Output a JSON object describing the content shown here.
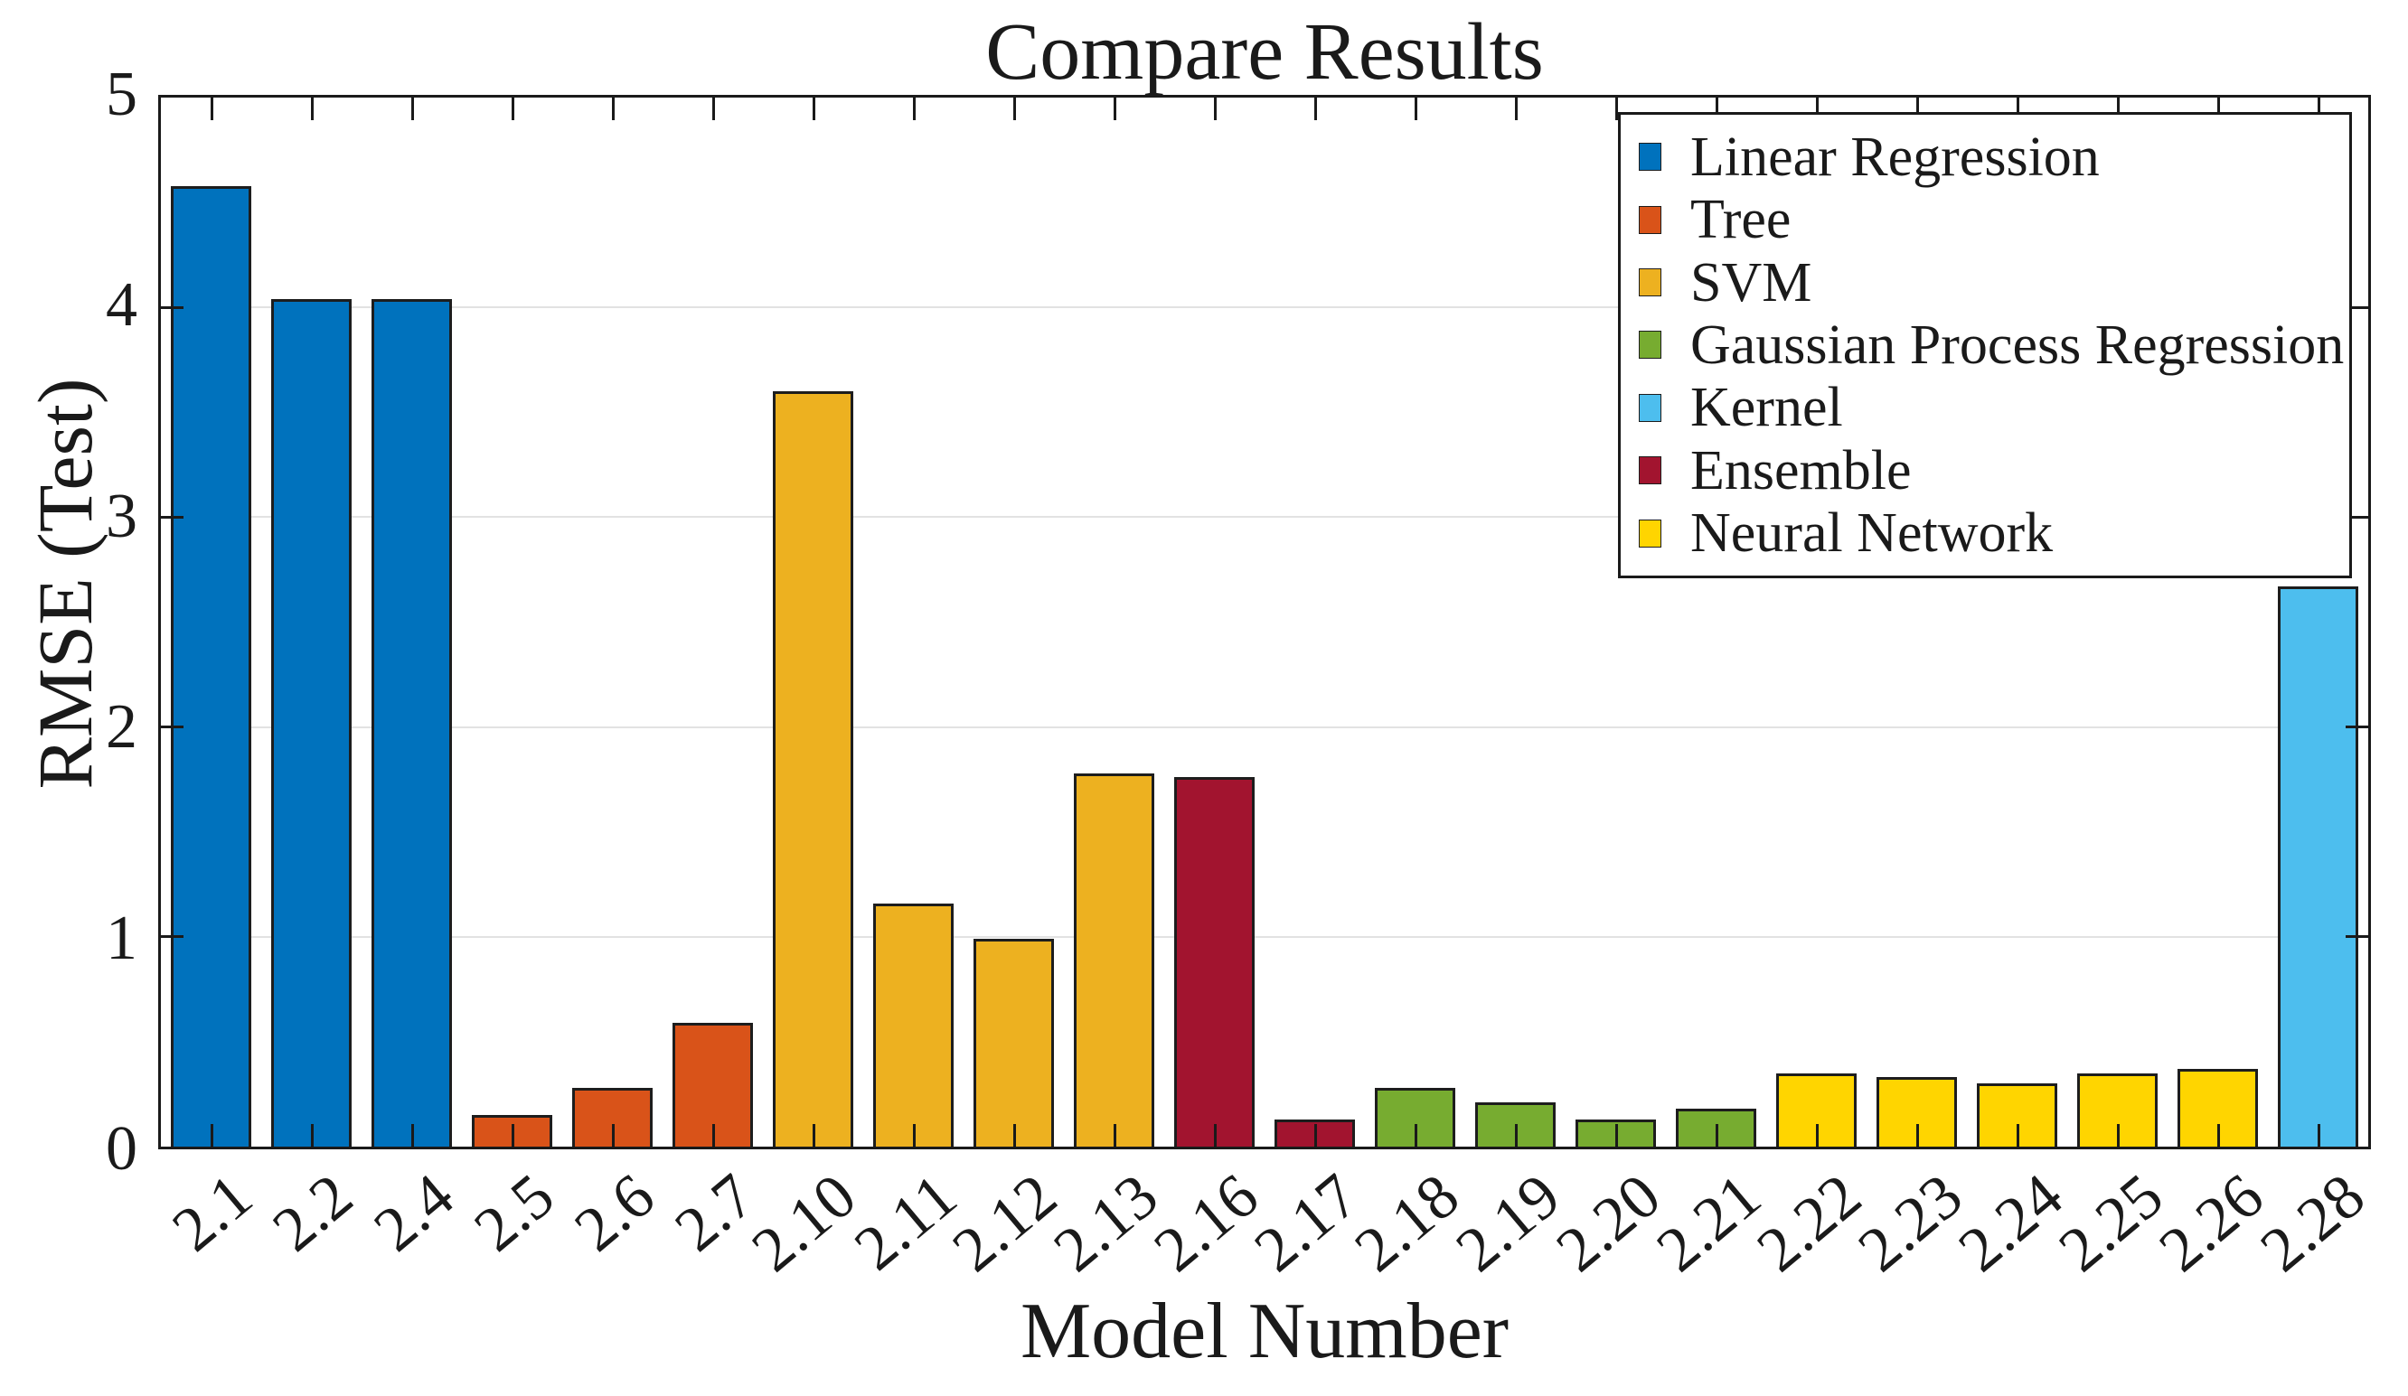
{
  "title": "Compare Results",
  "axes": {
    "ylabel": "RMSE (Test)",
    "xlabel": "Model Number",
    "y_ticks": [
      "0",
      "1",
      "2",
      "3",
      "4",
      "5"
    ],
    "grid_values": [
      1,
      2,
      3,
      4
    ],
    "ylim": [
      0,
      5
    ]
  },
  "legend": {
    "items": [
      {
        "label": "Linear Regression",
        "color": "#0072BD"
      },
      {
        "label": "Tree",
        "color": "#D95319"
      },
      {
        "label": "SVM",
        "color": "#EDB120"
      },
      {
        "label": "Gaussian Process Regression",
        "color": "#77AC30"
      },
      {
        "label": "Kernel",
        "color": "#4DBEEE"
      },
      {
        "label": "Ensemble",
        "color": "#A2142F"
      },
      {
        "label": "Neural Network",
        "color": "#FFD500"
      }
    ]
  },
  "chart_data": {
    "type": "bar",
    "title": "Compare Results",
    "xlabel": "Model Number",
    "ylabel": "RMSE (Test)",
    "ylim": [
      0,
      5
    ],
    "grid": "y-major at 1,2,3,4",
    "legend_position": "top-right-inside",
    "categories": [
      "2.1",
      "2.2",
      "2.4",
      "2.5",
      "2.6",
      "2.7",
      "2.10",
      "2.11",
      "2.12",
      "2.13",
      "2.16",
      "2.17",
      "2.18",
      "2.19",
      "2.20",
      "2.21",
      "2.22",
      "2.23",
      "2.24",
      "2.25",
      "2.26",
      "2.28"
    ],
    "values": [
      4.58,
      4.04,
      4.04,
      0.15,
      0.28,
      0.59,
      3.6,
      1.16,
      0.99,
      1.78,
      1.76,
      0.13,
      0.28,
      0.21,
      0.13,
      0.18,
      0.35,
      0.33,
      0.3,
      0.35,
      0.37,
      2.67
    ],
    "bars": [
      {
        "label": "2.1",
        "value": 4.58,
        "group": "Linear Regression",
        "color": "#0072BD"
      },
      {
        "label": "2.2",
        "value": 4.04,
        "group": "Linear Regression",
        "color": "#0072BD"
      },
      {
        "label": "2.4",
        "value": 4.04,
        "group": "Linear Regression",
        "color": "#0072BD"
      },
      {
        "label": "2.5",
        "value": 0.15,
        "group": "Tree",
        "color": "#D95319"
      },
      {
        "label": "2.6",
        "value": 0.28,
        "group": "Tree",
        "color": "#D95319"
      },
      {
        "label": "2.7",
        "value": 0.59,
        "group": "Tree",
        "color": "#D95319"
      },
      {
        "label": "2.10",
        "value": 3.6,
        "group": "SVM",
        "color": "#EDB120"
      },
      {
        "label": "2.11",
        "value": 1.16,
        "group": "SVM",
        "color": "#EDB120"
      },
      {
        "label": "2.12",
        "value": 0.99,
        "group": "SVM",
        "color": "#EDB120"
      },
      {
        "label": "2.13",
        "value": 1.78,
        "group": "SVM",
        "color": "#EDB120"
      },
      {
        "label": "2.16",
        "value": 1.76,
        "group": "Ensemble",
        "color": "#A2142F"
      },
      {
        "label": "2.17",
        "value": 0.13,
        "group": "Ensemble",
        "color": "#A2142F"
      },
      {
        "label": "2.18",
        "value": 0.28,
        "group": "Gaussian Process Regression",
        "color": "#77AC30"
      },
      {
        "label": "2.19",
        "value": 0.21,
        "group": "Gaussian Process Regression",
        "color": "#77AC30"
      },
      {
        "label": "2.20",
        "value": 0.13,
        "group": "Gaussian Process Regression",
        "color": "#77AC30"
      },
      {
        "label": "2.21",
        "value": 0.18,
        "group": "Gaussian Process Regression",
        "color": "#77AC30"
      },
      {
        "label": "2.22",
        "value": 0.35,
        "group": "Neural Network",
        "color": "#FFD500"
      },
      {
        "label": "2.23",
        "value": 0.33,
        "group": "Neural Network",
        "color": "#FFD500"
      },
      {
        "label": "2.24",
        "value": 0.3,
        "group": "Neural Network",
        "color": "#FFD500"
      },
      {
        "label": "2.25",
        "value": 0.35,
        "group": "Neural Network",
        "color": "#FFD500"
      },
      {
        "label": "2.26",
        "value": 0.37,
        "group": "Neural Network",
        "color": "#FFD500"
      },
      {
        "label": "2.28",
        "value": 2.67,
        "group": "Kernel",
        "color": "#4DBEEE"
      }
    ]
  }
}
